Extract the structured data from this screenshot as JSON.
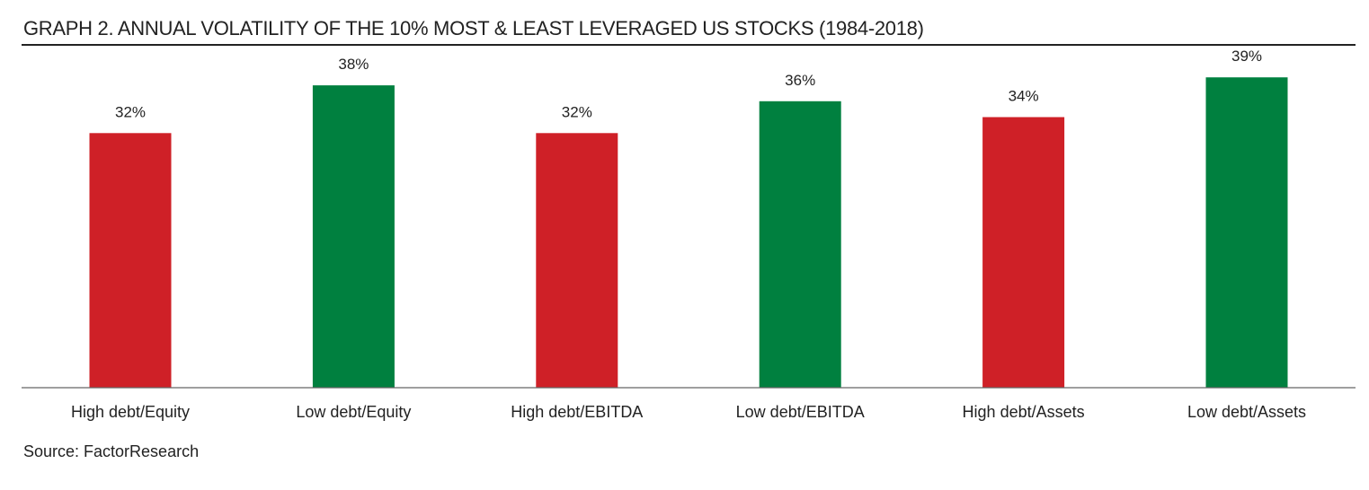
{
  "title": "GRAPH 2.  ANNUAL VOLATILITY OF THE 10% MOST & LEAST LEVERAGED US STOCKS (1984-2018)",
  "source": "Source: FactorResearch",
  "colors": {
    "high": "#cf2027",
    "low": "#00803f",
    "axis": "#666666",
    "text": "#222222"
  },
  "chart_data": {
    "type": "bar",
    "title": "GRAPH 2.  ANNUAL VOLATILITY OF THE 10% MOST & LEAST LEVERAGED US STOCKS (1984-2018)",
    "xlabel": "",
    "ylabel": "",
    "ylim": [
      0,
      40.6
    ],
    "grid": false,
    "categories": [
      "High debt/Equity",
      "Low debt/Equity",
      "High debt/EBITDA",
      "Low debt/EBITDA",
      "High debt/Assets",
      "Low debt/Assets"
    ],
    "values": [
      32,
      38,
      32,
      36,
      34,
      39
    ],
    "data_labels": [
      "32%",
      "38%",
      "32%",
      "36%",
      "34%",
      "39%"
    ],
    "groups": [
      "high",
      "low",
      "high",
      "low",
      "high",
      "low"
    ]
  }
}
